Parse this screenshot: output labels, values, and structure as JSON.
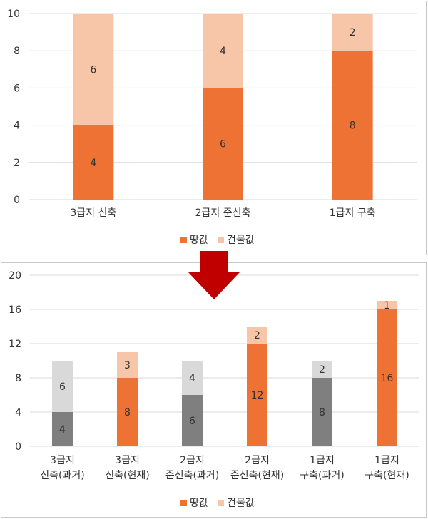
{
  "colors": {
    "land": "#ED7233",
    "building": "#F7C6A8",
    "past_dark": "#7F7F7F",
    "past_light": "#D9D9D9",
    "arrow": "#C00000",
    "grid": "#D9D9D9"
  },
  "chart_data": [
    {
      "type": "bar",
      "stacked": true,
      "categories": [
        "3급지 신축",
        "2급지 준신축",
        "1급지 구축"
      ],
      "series": [
        {
          "name": "땅값",
          "values": [
            4,
            6,
            8
          ]
        },
        {
          "name": "건물값",
          "values": [
            6,
            4,
            2
          ]
        }
      ],
      "ylim": [
        0,
        10
      ],
      "yticks": [
        0,
        2,
        4,
        6,
        8,
        10
      ],
      "legend": {
        "position": "bottom",
        "items": [
          "땅값",
          "건물값"
        ]
      }
    },
    {
      "type": "bar",
      "stacked": true,
      "categories": [
        [
          "3급지",
          "신축(과거)"
        ],
        [
          "3급지",
          "신축(현재)"
        ],
        [
          "2급지",
          "준신축(과거)"
        ],
        [
          "2급지",
          "준신축(현재)"
        ],
        [
          "1급지",
          "구축(과거)"
        ],
        [
          "1급지",
          "구축(현재)"
        ]
      ],
      "series": [
        {
          "name": "땅값",
          "values": [
            4,
            8,
            6,
            12,
            8,
            16
          ]
        },
        {
          "name": "건물값",
          "values": [
            6,
            3,
            4,
            2,
            2,
            1
          ]
        }
      ],
      "past_flags": [
        true,
        false,
        true,
        false,
        true,
        false
      ],
      "ylim": [
        0,
        20
      ],
      "yticks": [
        0,
        4,
        8,
        12,
        16,
        20
      ],
      "legend": {
        "position": "bottom",
        "items": [
          "땅값",
          "건물값"
        ]
      }
    }
  ]
}
